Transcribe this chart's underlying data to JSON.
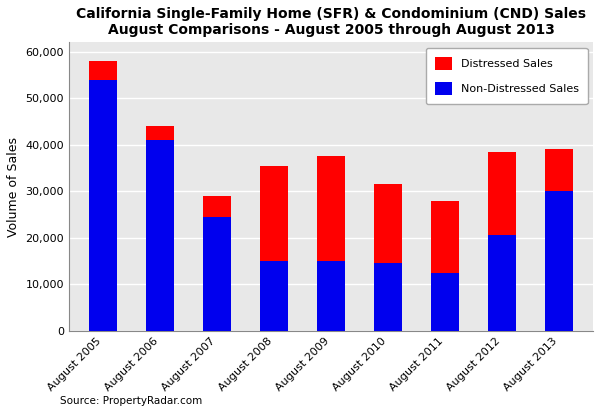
{
  "title_line1": "California Single-Family Home (SFR) & Condominium (CND) Sales",
  "title_line2": "August Comparisons - August 2005 through August 2013",
  "ylabel": "Volume of Sales",
  "source": "Source: PropertyRadar.com",
  "categories": [
    "August 2005",
    "August 2006",
    "August 2007",
    "August 2008",
    "August 2009",
    "August 2010",
    "August 2011",
    "August 2012",
    "August 2013"
  ],
  "non_distressed": [
    54000,
    41000,
    24500,
    15000,
    15000,
    14500,
    12500,
    20500,
    30000
  ],
  "distressed": [
    4000,
    3000,
    4500,
    20500,
    22500,
    17000,
    15500,
    18000,
    9000
  ],
  "non_distressed_color": "#0000EE",
  "distressed_color": "#FF0000",
  "ylim": [
    0,
    62000
  ],
  "yticks": [
    0,
    10000,
    20000,
    30000,
    40000,
    50000,
    60000
  ],
  "plot_bg_color": "#E8E8E8",
  "fig_bg_color": "#FFFFFF",
  "grid_color": "#FFFFFF",
  "legend_labels_ordered": [
    "Distressed Sales",
    "Non-Distressed Sales"
  ],
  "bar_width": 0.5,
  "title_fontsize": 10,
  "ylabel_fontsize": 9,
  "tick_fontsize": 8,
  "source_fontsize": 7.5
}
